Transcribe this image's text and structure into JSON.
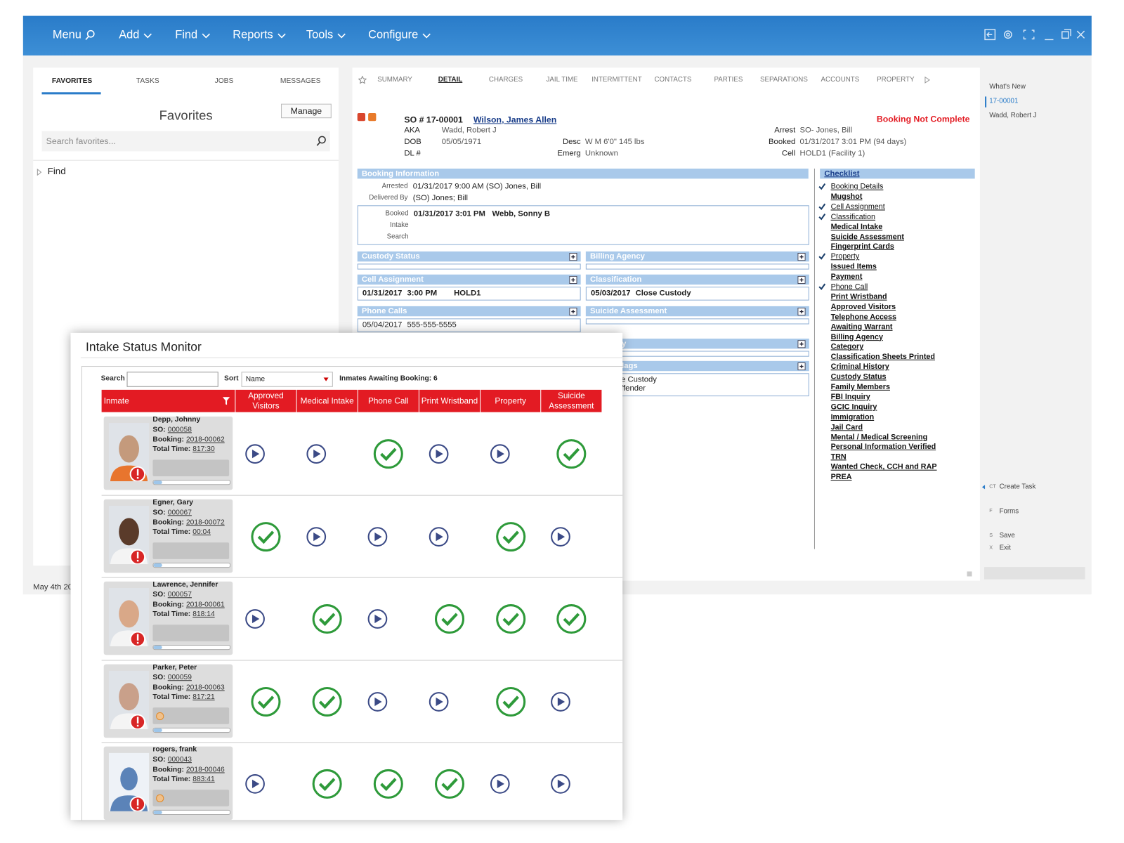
{
  "menu": [
    "Menu",
    "Add",
    "Find",
    "Reports",
    "Tools",
    "Configure"
  ],
  "left_tabs": [
    "FAVORITES",
    "TASKS",
    "JOBS",
    "MESSAGES"
  ],
  "favorites": {
    "title": "Favorites",
    "manage": "Manage",
    "search_placeholder": "Search favorites...",
    "tree": [
      "Find"
    ]
  },
  "footer_date": "May 4th 20",
  "detail_tabs": [
    "SUMMARY",
    "DETAIL",
    "CHARGES",
    "JAIL TIME",
    "INTERMITTENT",
    "CONTACTS",
    "PARTIES",
    "SEPARATIONS",
    "ACCOUNTS",
    "PROPERTY"
  ],
  "header": {
    "so": "SO # 17-00001",
    "name": "Wilson, James Allen",
    "status": "Booking Not Complete",
    "col1": [
      {
        "label": "AKA",
        "value": "Wadd, Robert J"
      },
      {
        "label": "DOB",
        "value": "05/05/1971"
      },
      {
        "label": "DL #",
        "value": ""
      }
    ],
    "col2": [
      {
        "label": "Desc",
        "value": "W M 6'0\" 145 lbs"
      },
      {
        "label": "Emerg",
        "value": "Unknown"
      }
    ],
    "col3": [
      {
        "label": "Arrest",
        "value": "SO- Jones, Bill"
      },
      {
        "label": "Booked",
        "value": "01/31/2017 3:01 PM (94 days)"
      },
      {
        "label": "Cell",
        "value": "HOLD1 (Facility 1)"
      }
    ]
  },
  "booking_info": {
    "title": "Booking Information",
    "rows": [
      {
        "label": "Arrested",
        "value": "01/31/2017 9:00 AM (SO) Jones, Bill"
      },
      {
        "label": "Delivered By",
        "value": "(SO) Jones; Bill"
      }
    ],
    "box": [
      {
        "label": "Booked",
        "values": [
          "01/31/2017",
          "3:01 PM",
          "Webb, Sonny B"
        ]
      },
      {
        "label": "Intake",
        "values": []
      },
      {
        "label": "Search",
        "values": []
      }
    ]
  },
  "panels": [
    {
      "title": "Custody Status",
      "values": []
    },
    {
      "title": "Billing Agency",
      "values": []
    },
    {
      "title": "Cell Assignment",
      "values": [
        "01/31/2017",
        "3:00 PM",
        "HOLD1"
      ]
    },
    {
      "title": "Classification",
      "values": [
        "05/03/2017",
        "Close Custody"
      ]
    },
    {
      "title": "Phone Calls",
      "values": [
        "05/04/2017",
        "555-555-5555"
      ]
    },
    {
      "title": "Suicide Assessment",
      "values": []
    },
    {
      "title": "y",
      "values": []
    },
    {
      "title": "lags",
      "values": [
        "e Custody",
        "ffender"
      ]
    }
  ],
  "checklist": {
    "title": "Checklist",
    "items": [
      {
        "label": "Booking Details",
        "done": true
      },
      {
        "label": "Mugshot",
        "done": false
      },
      {
        "label": "Cell Assignment",
        "done": true
      },
      {
        "label": "Classification",
        "done": true
      },
      {
        "label": "Medical Intake",
        "done": false
      },
      {
        "label": "Suicide Assessment",
        "done": false
      },
      {
        "label": "Fingerprint Cards",
        "done": false
      },
      {
        "label": "Property",
        "done": true
      },
      {
        "label": "Issued Items",
        "done": false
      },
      {
        "label": "Payment",
        "done": false
      },
      {
        "label": "Phone Call",
        "done": true
      },
      {
        "label": "Print Wristband",
        "done": false
      },
      {
        "label": "Approved Visitors",
        "done": false
      },
      {
        "label": "Telephone Access",
        "done": false
      },
      {
        "label": "Awaiting Warrant",
        "done": false
      },
      {
        "label": "Billing Agency",
        "done": false
      },
      {
        "label": "Category",
        "done": false
      },
      {
        "label": "Classification Sheets Printed",
        "done": false
      },
      {
        "label": "Criminal History",
        "done": false
      },
      {
        "label": "Custody Status",
        "done": false
      },
      {
        "label": "Family Members",
        "done": false
      },
      {
        "label": "FBI Inquiry",
        "done": false
      },
      {
        "label": "GCIC Inquiry",
        "done": false
      },
      {
        "label": "Immigration",
        "done": false
      },
      {
        "label": "Jail Card",
        "done": false
      },
      {
        "label": "Mental / Medical Screening",
        "done": false
      },
      {
        "label": "Personal Information Verified",
        "done": false
      },
      {
        "label": "TRN",
        "done": false
      },
      {
        "label": "Wanted Check, CCH and RAP",
        "done": false
      },
      {
        "label": "PREA",
        "done": false
      }
    ]
  },
  "sidebar": {
    "recent": [
      "What's New",
      "17-00001",
      "Wadd, Robert J"
    ],
    "actions": [
      {
        "key": "CT",
        "label": "Create Task"
      },
      {
        "key": "F",
        "label": "Forms"
      },
      {
        "key": "S",
        "label": "Save"
      },
      {
        "key": "X",
        "label": "Exit"
      }
    ]
  },
  "monitor": {
    "title": "Intake Status Monitor",
    "search_label": "Search",
    "sort_label": "Sort",
    "sort_value": "Name",
    "awaiting": "Inmates Awaiting Booking: 6",
    "columns": [
      "Inmate",
      "Approved Visitors",
      "Medical Intake",
      "Phone Call",
      "Print Wristband",
      "Property",
      "Suicide Assessment"
    ],
    "field_labels": {
      "so": "SO:",
      "booking": "Booking:",
      "total_time": "Total Time:"
    },
    "rows": [
      {
        "name": "Depp, Johnny",
        "so": "000058",
        "booking": "2018-00062",
        "total_time": "817:30",
        "status": [
          "pending",
          "pending",
          "done",
          "pending",
          "pending",
          "done"
        ]
      },
      {
        "name": "Egner, Gary",
        "so": "000067",
        "booking": "2018-00072",
        "total_time": "00:04",
        "status": [
          "done",
          "pending",
          "pending",
          "pending",
          "done",
          "pending"
        ]
      },
      {
        "name": "Lawrence, Jennifer",
        "so": "000057",
        "booking": "2018-00061",
        "total_time": "818:14",
        "status": [
          "pending",
          "done",
          "pending",
          "done",
          "done",
          "done"
        ]
      },
      {
        "name": "Parker, Peter",
        "so": "000059",
        "booking": "2018-00063",
        "total_time": "817:21",
        "status": [
          "done",
          "done",
          "pending",
          "pending",
          "done",
          "pending"
        ]
      },
      {
        "name": "rogers, frank",
        "so": "000043",
        "booking": "2018-00046",
        "total_time": "883:41",
        "status": [
          "pending",
          "done",
          "done",
          "done",
          "pending",
          "pending"
        ]
      }
    ]
  }
}
